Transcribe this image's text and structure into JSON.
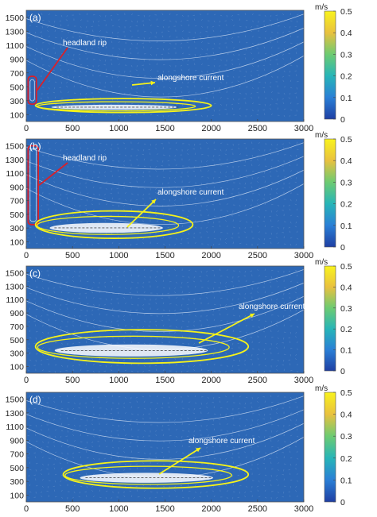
{
  "colorbar": {
    "unit": "m/s",
    "ticks": [
      "0",
      "0.1",
      "0.2",
      "0.3",
      "0.4",
      "0.5"
    ],
    "range": [
      0,
      0.5
    ],
    "colors": [
      "#1f3fa3",
      "#2a7fd6",
      "#27b5b8",
      "#6dcb72",
      "#e9c13f",
      "#f9f31d"
    ]
  },
  "colors": {
    "background": "#2d68b6",
    "contour": "#c9d9f0",
    "highlight_yellow": "#f5f21a",
    "highlight_red": "#d8202a",
    "jet_white": "#ffffff"
  },
  "chart_data": [
    {
      "type": "heatmap",
      "panel_label": "(a)",
      "xlim": [
        0,
        3000
      ],
      "ylim": [
        0,
        1600
      ],
      "xticks": [
        "0",
        "500",
        "1000",
        "1500",
        "2000",
        "2500",
        "3000"
      ],
      "yticks": [
        "100",
        "300",
        "500",
        "700",
        "900",
        "1100",
        "1300",
        "1500"
      ],
      "annotations": [
        "headland rip",
        "alongshore current"
      ],
      "features": [
        {
          "kind": "headland-rip",
          "color": "red",
          "x": [
            20,
            110
          ],
          "y": [
            250,
            650
          ]
        },
        {
          "kind": "alongshore-current",
          "color": "yellow",
          "x": [
            100,
            2000
          ],
          "y": [
            130,
            330
          ]
        }
      ]
    },
    {
      "type": "heatmap",
      "panel_label": "(b)",
      "xlim": [
        0,
        3000
      ],
      "ylim": [
        0,
        1600
      ],
      "xticks": [
        "0",
        "500",
        "1000",
        "1500",
        "2000",
        "2500",
        "3000"
      ],
      "yticks": [
        "100",
        "300",
        "500",
        "700",
        "900",
        "1100",
        "1300",
        "1500"
      ],
      "annotations": [
        "headland rip",
        "alongshore current"
      ],
      "features": [
        {
          "kind": "headland-rip",
          "color": "red",
          "x": [
            20,
            130
          ],
          "y": [
            350,
            1500
          ]
        },
        {
          "kind": "alongshore-current",
          "color": "yellow",
          "x": [
            100,
            1800
          ],
          "y": [
            150,
            550
          ]
        }
      ]
    },
    {
      "type": "heatmap",
      "panel_label": "(c)",
      "xlim": [
        0,
        3000
      ],
      "ylim": [
        0,
        1600
      ],
      "xticks": [
        "0",
        "500",
        "1000",
        "1500",
        "2000",
        "2500",
        "3000"
      ],
      "yticks": [
        "100",
        "300",
        "500",
        "700",
        "900",
        "1100",
        "1300",
        "1500"
      ],
      "annotations": [
        "alongshore current"
      ],
      "features": [
        {
          "kind": "alongshore-current",
          "color": "yellow",
          "x": [
            100,
            2400
          ],
          "y": [
            150,
            650
          ]
        }
      ]
    },
    {
      "type": "heatmap",
      "panel_label": "(d)",
      "xlim": [
        0,
        3000
      ],
      "ylim": [
        0,
        1600
      ],
      "xticks": [
        "0",
        "500",
        "1000",
        "1500",
        "2000",
        "2500",
        "3000"
      ],
      "yticks": [
        "100",
        "300",
        "500",
        "700",
        "900",
        "1100",
        "1300",
        "1500"
      ],
      "annotations": [
        "alongshore current"
      ],
      "features": [
        {
          "kind": "alongshore-current",
          "color": "yellow",
          "x": [
            400,
            2400
          ],
          "y": [
            200,
            600
          ]
        }
      ]
    }
  ]
}
